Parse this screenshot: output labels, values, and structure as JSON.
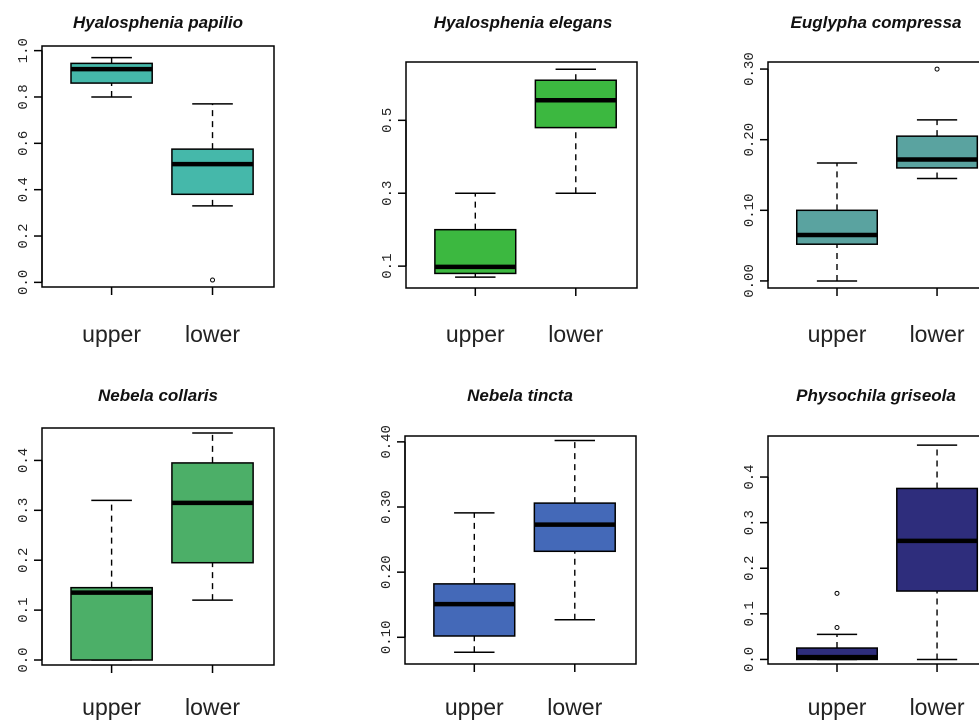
{
  "chart_data": [
    {
      "type": "box",
      "title": "Hyalosphenia papilio",
      "categories": [
        "upper",
        "lower"
      ],
      "ylim": [
        -0.02,
        1.02
      ],
      "yticks": [
        "0.0",
        "0.2",
        "0.4",
        "0.6",
        "0.8",
        "1.0"
      ],
      "ytick_values": [
        0,
        0.2,
        0.4,
        0.6,
        0.8,
        1.0
      ],
      "box_color": "#45b8aa",
      "boxes": [
        {
          "min": 0.8,
          "q1": 0.86,
          "median": 0.92,
          "q3": 0.945,
          "max": 0.97,
          "outliers": []
        },
        {
          "min": 0.33,
          "q1": 0.38,
          "median": 0.51,
          "q3": 0.575,
          "max": 0.77,
          "outliers": [
            0.01
          ]
        }
      ]
    },
    {
      "type": "box",
      "title": "Hyalosphenia elegans",
      "categories": [
        "upper",
        "lower"
      ],
      "ylim": [
        0.04,
        0.66
      ],
      "yticks": [
        "0.1",
        "0.3",
        "0.5"
      ],
      "ytick_values": [
        0.1,
        0.3,
        0.5
      ],
      "box_color": "#3cb840",
      "boxes": [
        {
          "min": 0.07,
          "q1": 0.08,
          "median": 0.098,
          "q3": 0.2,
          "max": 0.3,
          "outliers": []
        },
        {
          "min": 0.3,
          "q1": 0.48,
          "median": 0.555,
          "q3": 0.61,
          "max": 0.64,
          "outliers": []
        }
      ]
    },
    {
      "type": "box",
      "title": "Euglypha compressa",
      "categories": [
        "upper",
        "lower"
      ],
      "ylim": [
        -0.01,
        0.31
      ],
      "yticks": [
        "0.00",
        "0.10",
        "0.20",
        "0.30"
      ],
      "ytick_values": [
        0,
        0.1,
        0.2,
        0.3
      ],
      "box_color": "#5aa3a0",
      "boxes": [
        {
          "min": 0.0,
          "q1": 0.052,
          "median": 0.065,
          "q3": 0.1,
          "max": 0.167,
          "outliers": []
        },
        {
          "min": 0.145,
          "q1": 0.16,
          "median": 0.172,
          "q3": 0.205,
          "max": 0.228,
          "outliers": [
            0.3
          ]
        }
      ]
    },
    {
      "type": "box",
      "title": "Nebela collaris",
      "categories": [
        "upper",
        "lower"
      ],
      "ylim": [
        -0.01,
        0.465
      ],
      "yticks": [
        "0.0",
        "0.1",
        "0.2",
        "0.3",
        "0.4"
      ],
      "ytick_values": [
        0,
        0.1,
        0.2,
        0.3,
        0.4
      ],
      "box_color": "#4caf68",
      "boxes": [
        {
          "min": 0.0,
          "q1": 0.0,
          "median": 0.135,
          "q3": 0.145,
          "max": 0.32,
          "outliers": []
        },
        {
          "min": 0.12,
          "q1": 0.195,
          "median": 0.315,
          "q3": 0.395,
          "max": 0.455,
          "outliers": []
        }
      ]
    },
    {
      "type": "box",
      "title": "Nebela tincta",
      "categories": [
        "upper",
        "lower"
      ],
      "ylim": [
        0.059,
        0.409
      ],
      "yticks": [
        "0.10",
        "0.20",
        "0.30",
        "0.40"
      ],
      "ytick_values": [
        0.1,
        0.2,
        0.3,
        0.4
      ],
      "box_color": "#4469b8",
      "boxes": [
        {
          "min": 0.077,
          "q1": 0.102,
          "median": 0.151,
          "q3": 0.182,
          "max": 0.291,
          "outliers": []
        },
        {
          "min": 0.127,
          "q1": 0.232,
          "median": 0.273,
          "q3": 0.306,
          "max": 0.402,
          "outliers": []
        }
      ]
    },
    {
      "type": "box",
      "title": "Physochila griseola",
      "categories": [
        "upper",
        "lower"
      ],
      "ylim": [
        -0.01,
        0.49
      ],
      "yticks": [
        "0.0",
        "0.1",
        "0.2",
        "0.3",
        "0.4"
      ],
      "ytick_values": [
        0,
        0.1,
        0.2,
        0.3,
        0.4
      ],
      "box_color": "#2e2d7c",
      "boxes": [
        {
          "min": 0.0,
          "q1": 0.0,
          "median": 0.005,
          "q3": 0.025,
          "max": 0.055,
          "outliers": [
            0.07,
            0.145
          ]
        },
        {
          "min": 0.0,
          "q1": 0.15,
          "median": 0.26,
          "q3": 0.375,
          "max": 0.47,
          "outliers": []
        }
      ]
    }
  ]
}
